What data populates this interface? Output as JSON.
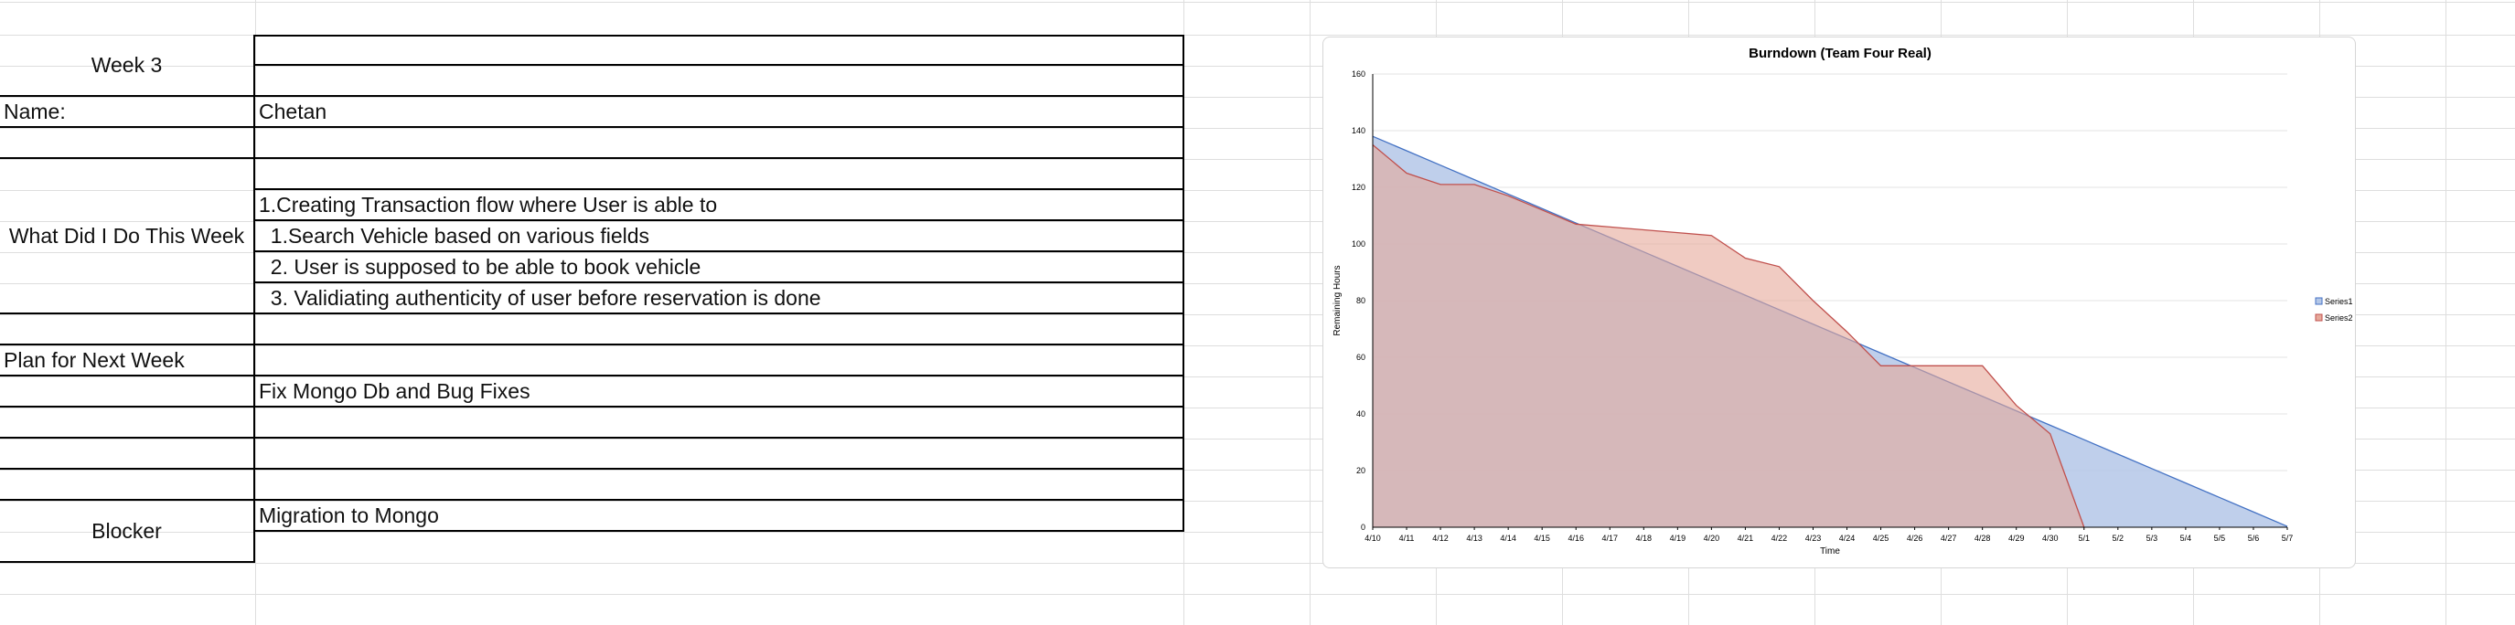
{
  "report": {
    "week_label": "Week 3",
    "name_label": "Name:",
    "name_value": "Chetan",
    "did_label": "What Did I Do This Week",
    "did_items": [
      "1.Creating Transaction flow where User is able to",
      "  1.Search Vehicle based on various fields",
      "  2. User is supposed to be able to book vehicle",
      "  3. Validiating authenticity of user before reservation is done"
    ],
    "plan_label": "Plan for Next Week",
    "plan_value": "Fix Mongo Db and Bug Fixes",
    "blocker_label": "Blocker",
    "blocker_value": "Migration to Mongo"
  },
  "chart_data": {
    "type": "area",
    "title": "Burndown (Team Four Real)",
    "xlabel": "Time",
    "ylabel": "Remaining Hours",
    "categories": [
      "4/10",
      "4/11",
      "4/12",
      "4/13",
      "4/14",
      "4/15",
      "4/16",
      "4/17",
      "4/18",
      "4/19",
      "4/20",
      "4/21",
      "4/22",
      "4/23",
      "4/24",
      "4/25",
      "4/26",
      "4/27",
      "4/28",
      "4/29",
      "4/30",
      "5/1",
      "5/2",
      "5/3",
      "5/4",
      "5/5",
      "5/6",
      "5/7"
    ],
    "yticks": [
      0,
      20,
      40,
      60,
      80,
      100,
      120,
      140,
      160
    ],
    "ylim": [
      0,
      160
    ],
    "grid": true,
    "legend_position": "right",
    "series": [
      {
        "name": "Series1",
        "color": "#4472c4",
        "fill": "#b4c7e7",
        "values": [
          138,
          132.9,
          127.8,
          122.7,
          117.6,
          112.5,
          107.4,
          102.3,
          97.2,
          92.1,
          87,
          81.9,
          76.8,
          71.7,
          66.6,
          61.5,
          56.4,
          51.3,
          46.2,
          41.1,
          36,
          30.9,
          25.8,
          20.7,
          15.6,
          10.5,
          5.4,
          0.3
        ]
      },
      {
        "name": "Series2",
        "color": "#c0504d",
        "fill": "#e6a99a",
        "values": [
          135,
          125,
          121,
          121,
          117,
          112,
          107,
          106,
          105,
          104,
          103,
          95,
          92,
          80,
          69,
          57,
          57,
          57,
          57,
          43,
          33,
          0,
          null,
          null,
          null,
          null,
          null,
          null
        ]
      }
    ]
  }
}
